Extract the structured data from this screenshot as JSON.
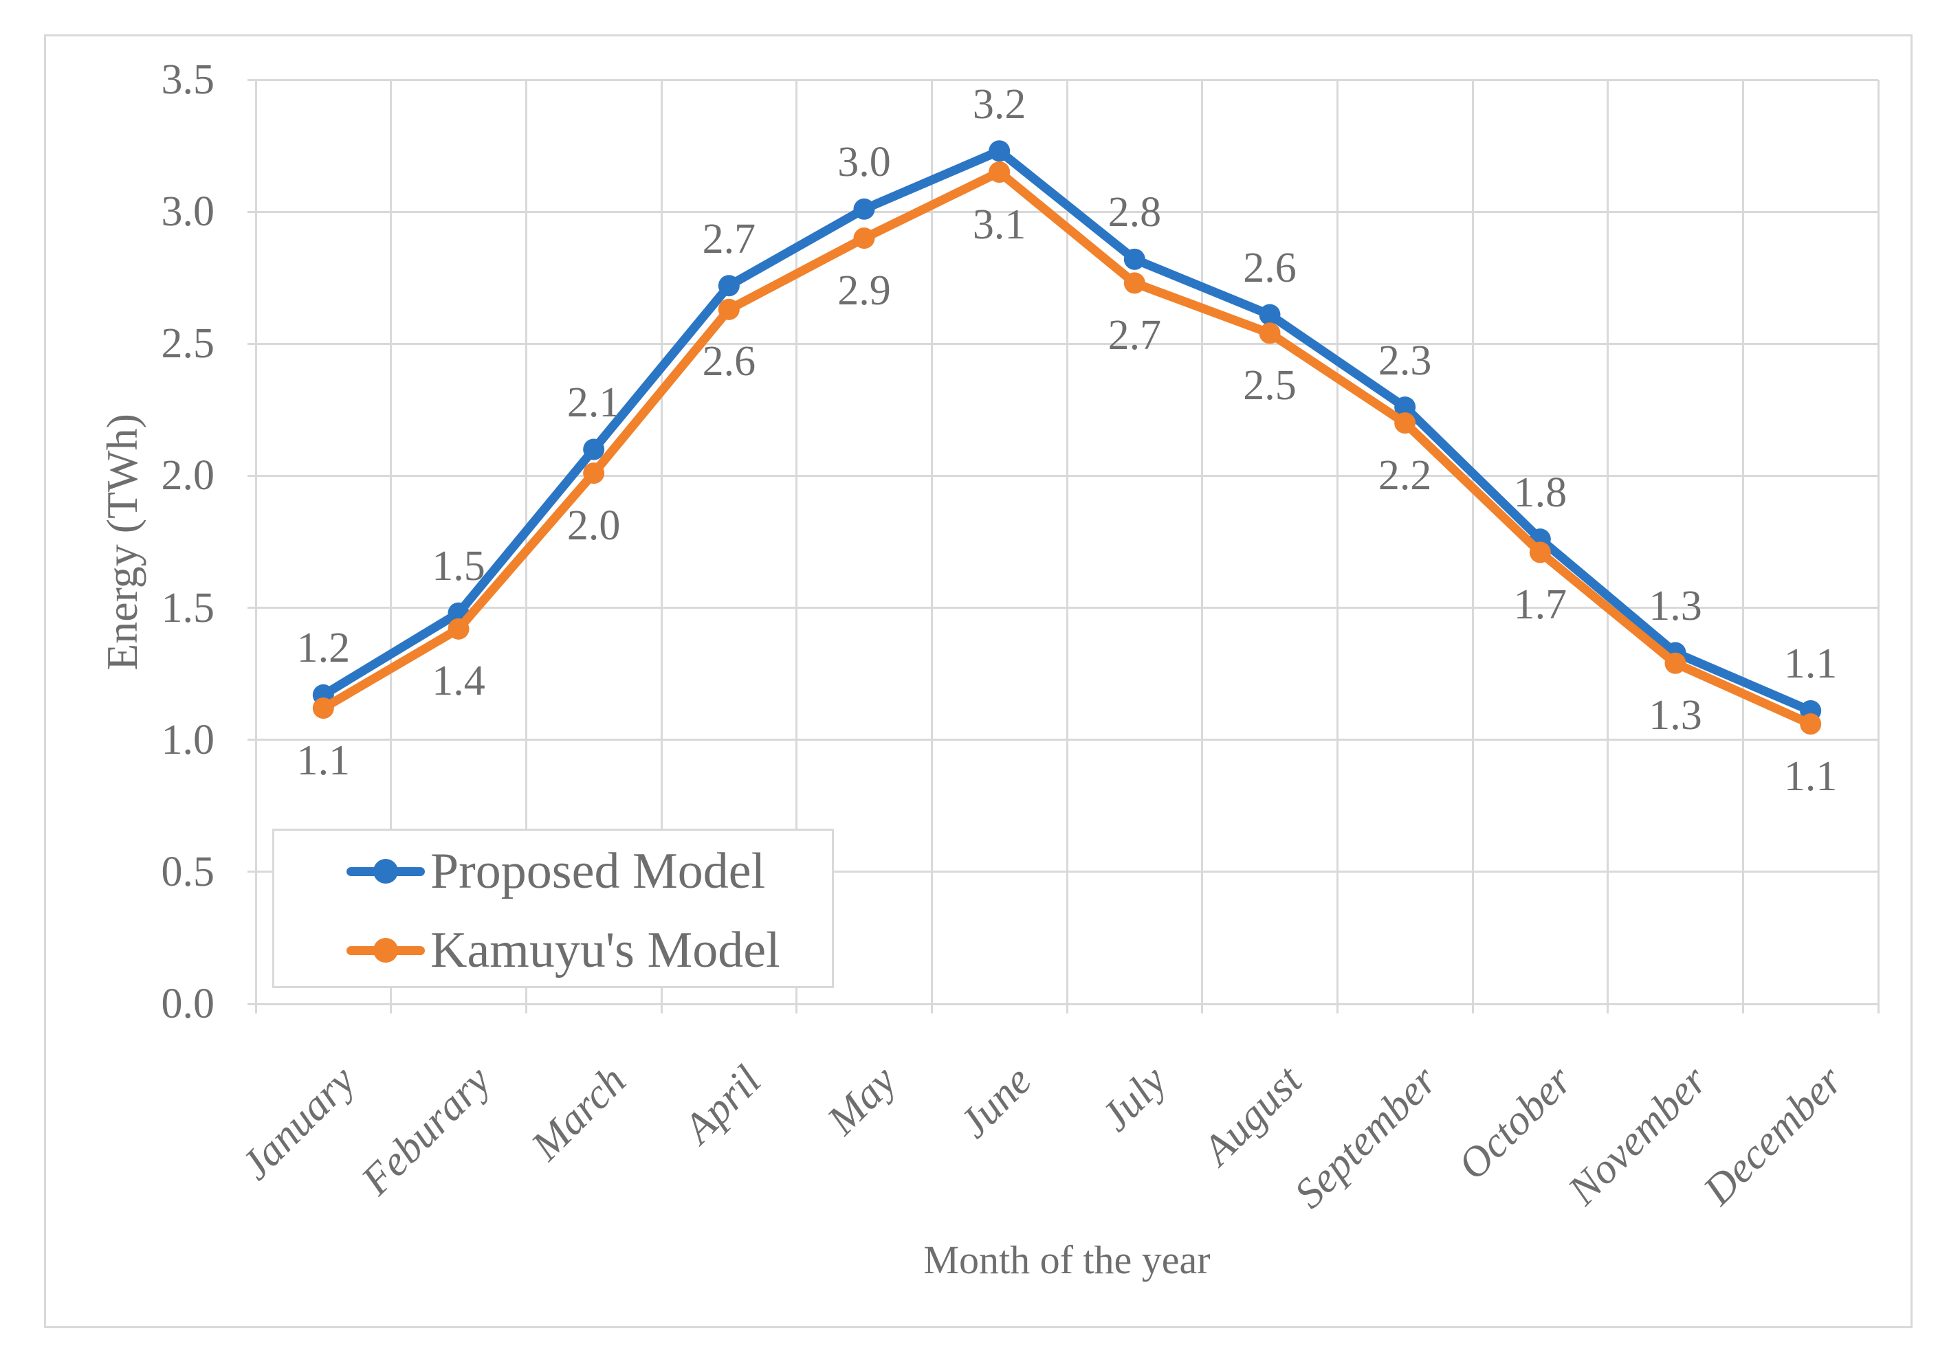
{
  "chart_data": {
    "type": "line",
    "title": "",
    "xlabel": "Month of the year",
    "ylabel": "Energy (TWh)",
    "ylim": [
      0.0,
      3.5
    ],
    "ytick_step": 0.5,
    "ytick_labels": [
      "0.0",
      "0.5",
      "1.0",
      "1.5",
      "2.0",
      "2.5",
      "3.0",
      "3.5"
    ],
    "categories": [
      "January",
      "Feburary",
      "March",
      "April",
      "May",
      "June",
      "July",
      "August",
      "September",
      "October",
      "November",
      "December"
    ],
    "grid": "both",
    "legend_position": "inside-bottom-left",
    "gridline_color": "#d9d9d9",
    "text_color": "#6e6e6e",
    "series": [
      {
        "name": "Proposed Model",
        "color": "#2b76c4",
        "marker": "circle",
        "values": [
          1.2,
          1.5,
          2.1,
          2.7,
          3.0,
          3.2,
          2.8,
          2.6,
          2.3,
          1.8,
          1.3,
          1.1
        ],
        "data_labels": [
          "1.2",
          "1.5",
          "2.1",
          "2.7",
          "3.0",
          "3.2",
          "2.8",
          "2.6",
          "2.3",
          "1.8",
          "1.3",
          "1.1"
        ],
        "label_position": "above",
        "plotted_values": [
          1.17,
          1.48,
          2.1,
          2.72,
          3.01,
          3.23,
          2.82,
          2.61,
          2.26,
          1.76,
          1.33,
          1.11
        ]
      },
      {
        "name": "Kamuyu's Model",
        "color": "#f1812b",
        "marker": "circle",
        "values": [
          1.1,
          1.4,
          2.0,
          2.6,
          2.9,
          3.1,
          2.7,
          2.5,
          2.2,
          1.7,
          1.3,
          1.1
        ],
        "data_labels": [
          "1.1",
          "1.4",
          "2.0",
          "2.6",
          "2.9",
          "3.1",
          "2.7",
          "2.5",
          "2.2",
          "1.7",
          "1.3",
          "1.1"
        ],
        "label_position": "below",
        "plotted_values": [
          1.12,
          1.42,
          2.01,
          2.63,
          2.9,
          3.15,
          2.73,
          2.54,
          2.2,
          1.71,
          1.29,
          1.06
        ]
      }
    ]
  }
}
